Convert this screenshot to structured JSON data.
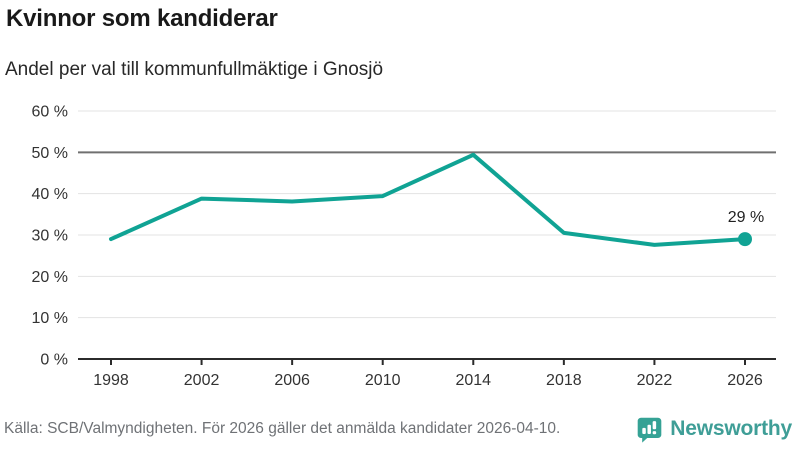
{
  "header": {
    "title": "Kvinnor som kandiderar",
    "subtitle": "Andel per val till kommunfullmäktige i Gnosjö"
  },
  "chart_data": {
    "type": "line",
    "title": "Kvinnor som kandiderar",
    "subtitle": "Andel per val till kommunfullmäktige i Gnosjö",
    "categories": [
      "1998",
      "2002",
      "2006",
      "2010",
      "2014",
      "2018",
      "2022",
      "2026"
    ],
    "values": [
      29,
      38.8,
      38.1,
      39.4,
      49.4,
      30.5,
      27.6,
      29
    ],
    "xlabel": "",
    "ylabel": "",
    "ylim": [
      0,
      60
    ],
    "ytick_step": 10,
    "ytick_suffix": " %",
    "ytick_labels": [
      "0 %",
      "10 %",
      "20 %",
      "30 %",
      "40 %",
      "50 %",
      "60 %"
    ],
    "grid": true,
    "reference_line_y": 50,
    "end_point_label": "29 %",
    "legend_position": "none",
    "marker": "end-dot-only"
  },
  "footer": {
    "source": "Källa: SCB/Valmyndigheten. För 2026 gäller det anmälda kandidater 2026-04-10.",
    "brand": "Newsworthy"
  },
  "colors": {
    "accent_line": "#10A394",
    "grid": "#E3E3E3",
    "reference_line": "#707070",
    "axis": "#2B2B2B",
    "logo_bubble": "#35A295",
    "logo_text": "#3F9E97"
  }
}
